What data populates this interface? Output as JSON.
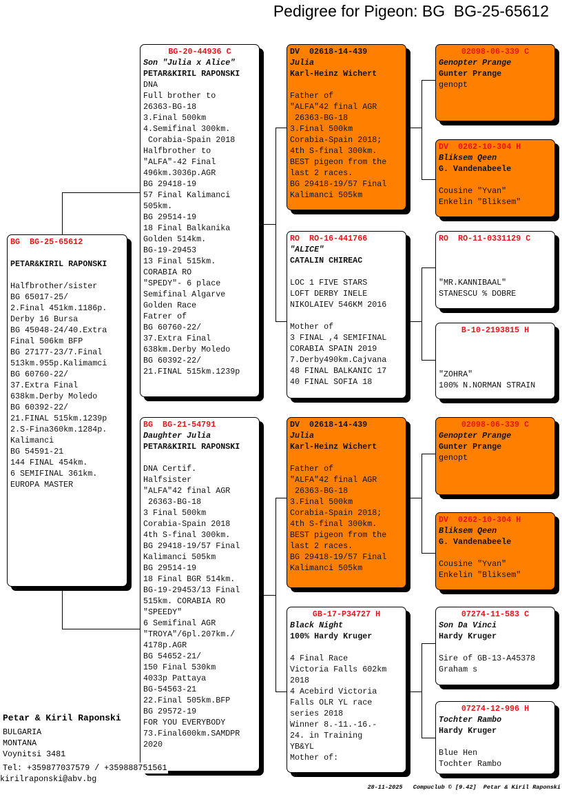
{
  "title": "Pedigree for Pigeon: BG  BG-25-65612",
  "colors": {
    "header_red": "#e8141a",
    "orange_fill": "#ff8000",
    "white_fill": "#ffffff"
  },
  "pigeons": {
    "subject": {
      "fill": "#ffffff",
      "header_color": "#e8141a",
      "header": "BG  BG-25-65612",
      "name": "",
      "owner": "PETAR&KIRIL RAPONSKI",
      "notes": [
        "",
        "Halfbrother/sister",
        "BG 65017-25/",
        "2.Final 451km.1186p.",
        "Derby 16 Bursa",
        "BG 45048-24/40.Extra",
        "Final 506km BFP",
        "BG 27177-23/7.Final",
        "513km.955p.Kalimamci",
        "BG 60760-22/",
        "37.Extra Final",
        "638km.Derby Moledo",
        "BG 60392-22/",
        "21.FINAL 515km.1239p",
        "2.S-Fina360km.1284p.",
        "Kalimanci",
        "BG 54591-21",
        "144 FINAL 454km.",
        "6 SEMIFINAL 361km.",
        "EUROPA MASTER"
      ]
    },
    "sire": {
      "fill": "#ffffff",
      "header_color": "#e8141a",
      "header": "BG-20-44936 C",
      "name": "Son \"Julia x Alice\"",
      "owner": "PETAR&KIRIL RAPONSKI",
      "notes": [
        "DNA",
        "Full brother to",
        "26363-BG-18",
        "3.Final 500km",
        "4.Semifinal 300km.",
        " Corabia-Spain 2018",
        "Halfbrother to",
        "\"ALFA\"-42 Final",
        "496km.3036p.AGR",
        "BG 29418-19",
        "57 Final Kalimanci",
        "505km.",
        "BG 29514-19",
        "18 Final Balkanika",
        "Golden 514km.",
        "BG-19-29453",
        "13 Final 515km.",
        "CORABIA RO",
        "\"SPEDY\"- 6 place",
        "Semifinal Algarve",
        "Golden Race",
        "Fatrer of",
        "BG 60760-22/",
        "37.Extra Final",
        "638km.Derby Moledo",
        "BG 60392-22/",
        "21.FINAL 515km.1239p"
      ]
    },
    "dam": {
      "fill": "#ffffff",
      "header_color": "#e8141a",
      "header": "BG  BG-21-54791",
      "name": "Daughter Julia",
      "owner": "PETAR&KIRIL RAPONSKI",
      "notes": [
        "",
        "DNA Certif.",
        "Halfsister",
        "\"ALFA\"42 final AGR",
        " 26363-BG-18",
        "3 Final 500km",
        "Corabia-Spain 2018",
        "4th S-final 300km.",
        "BG 29418-19/57 Final",
        "Kalimanci 505km",
        "BG 29514-19",
        "18 Final BGR 514km.",
        "BG-19-29453/13 Final",
        "515km. CORABIA RO",
        "\"SPEEDY\"",
        "6 Semifinal AGR",
        "\"TROYA\"/6pl.207km./",
        "4178p.AGR",
        "BG 54652-21/",
        "150 Final 530km",
        "4033p Pattaya",
        "BG-54563-21",
        "22.Final 505km.BFP",
        "BG 29572-19",
        "FOR YOU EVERYBODY",
        "73.Final600km.SAMDPR",
        "2020"
      ]
    },
    "sire_sire": {
      "fill": "#ff8000",
      "header_color": "#111111",
      "header": "DV  02618-14-439",
      "name": "Julia",
      "owner": "Karl-Heinz Wichert",
      "notes": [
        "",
        "Father of",
        "\"ALFA\"42 final AGR",
        " 26363-BG-18",
        "3.Final 500km",
        "Corabia-Spain 2018;",
        "4th S-final 300km.",
        "BEST pigeon from the",
        "last 2 races.",
        "BG 29418-19/57 Final",
        "Kalimanci 505km"
      ]
    },
    "sire_dam": {
      "fill": "#ffffff",
      "header_color": "#e8141a",
      "header": "RO  RO-16-441766",
      "name": "\"ALICE\"",
      "owner": "CATALIN CHIREAC",
      "notes": [
        "",
        "LOC 1 FIVE STARS",
        "LOFT DERBY INELE",
        "NIKOLAIEV 546KM 2016",
        "",
        "Mother of",
        "3 FINAL ,4 SEMIFINAL",
        "CORABIA SPAIN 2019",
        "7.Derby490km.Cajvana",
        "48 FINAL BALKANIC 17",
        "40 FINAL SOFIA 18"
      ]
    },
    "dam_sire": {
      "fill": "#ff8000",
      "header_color": "#111111",
      "header": "DV  02618-14-439",
      "name": "Julia",
      "owner": "Karl-Heinz Wichert",
      "notes": [
        "",
        "Father of",
        "\"ALFA\"42 final AGR",
        " 26363-BG-18",
        "3.Final 500km",
        "Corabia-Spain 2018;",
        "4th S-final 300km.",
        "BEST pigeon from the",
        "last 2 races.",
        "BG 29418-19/57 Final",
        "Kalimanci 505km"
      ]
    },
    "dam_dam": {
      "fill": "#ffffff",
      "header_color": "#e8141a",
      "header": "GB-17-P34727 H",
      "name": "Black Night",
      "owner": "100% Hardy Kruger",
      "notes": [
        "",
        "4 Final Race",
        "Victoria Falls 602km",
        "2018",
        "4 Acebird Victoria",
        "Falls OLR YL race",
        "series 2018",
        "Winner 8.-11.-16.-",
        "24. in Training",
        "YB&YL",
        "Mother of:"
      ]
    },
    "ss_sire": {
      "fill": "#ff8000",
      "header_color": "#e8141a",
      "header": "02098-06-339 C",
      "name": "Genopter Prange",
      "owner": "Gunter Prange",
      "notes": [
        "genopt"
      ]
    },
    "ss_dam": {
      "fill": "#ff8000",
      "header_color": "#e8141a",
      "header": "DV  0262-10-304 H",
      "name": "Bliksem Qeen",
      "owner": "G. Vandenabeele",
      "notes": [
        "",
        "Cousine \"Yvan\"",
        "Enkelin \"Bliksem\""
      ]
    },
    "sd_sire": {
      "fill": "#ffffff",
      "header_color": "#e8141a",
      "header": "RO  RO-11-0331129 C",
      "name": "",
      "owner": "",
      "notes": [
        "",
        "\"MR.KANNIBAAL\"",
        "STANESCU % DOBRE"
      ]
    },
    "sd_dam": {
      "fill": "#ffffff",
      "header_color": "#e8141a",
      "header": "B-10-2193815 H",
      "name": "",
      "owner": "",
      "notes": [
        "",
        "\"ZOHRA\"",
        "100% N.NORMAN STRAIN"
      ]
    },
    "ds_sire": {
      "fill": "#ff8000",
      "header_color": "#e8141a",
      "header": "02098-06-339 C",
      "name": "Genopter Prange",
      "owner": "Gunter Prange",
      "notes": [
        "genopt"
      ]
    },
    "ds_dam": {
      "fill": "#ff8000",
      "header_color": "#e8141a",
      "header": "DV  0262-10-304 H",
      "name": "Bliksem Qeen",
      "owner": "G. Vandenabeele",
      "notes": [
        "",
        "Cousine \"Yvan\"",
        "Enkelin \"Bliksem\""
      ]
    },
    "dd_sire": {
      "fill": "#ffffff",
      "header_color": "#e8141a",
      "header": "07274-11-583 C",
      "name": "Son Da Vinci",
      "owner": "Hardy Kruger",
      "notes": [
        "",
        "Sire of GB-13-A45378",
        "Graham s"
      ]
    },
    "dd_dam": {
      "fill": "#ffffff",
      "header_color": "#e8141a",
      "header": "07274-12-996 H",
      "name": "Tochter Rambo",
      "owner": "Hardy Kruger",
      "notes": [
        "",
        "Blue Hen",
        "Tochter Rambo"
      ]
    }
  },
  "breeder": {
    "name": "Petar & Kiril Raponski",
    "address": [
      "BULGARIA",
      "MONTANA",
      "Voynitsi 3481"
    ],
    "tel": "Tel: +359877037579 / +359888751561",
    "email": "kirilraponski@abv.bg"
  },
  "footer": "28-11-2025   Compuclub © [9.42]  Petar & Kiril Raponski"
}
